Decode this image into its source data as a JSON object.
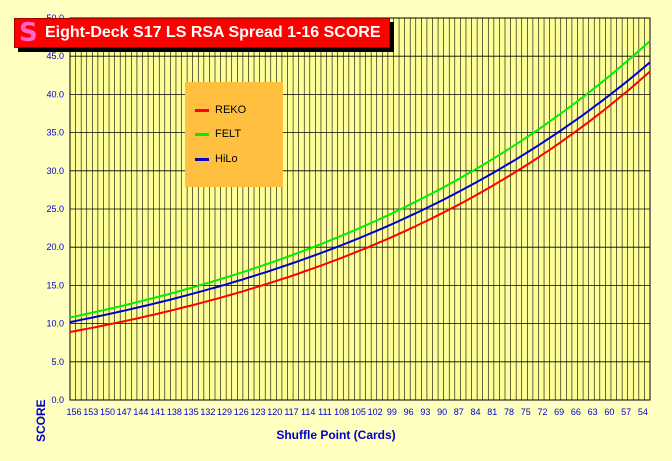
{
  "title": "Eight-Deck S17 LS RSA Spread 1-16 SCORE",
  "title_icon": "S",
  "chart_data": {
    "type": "line",
    "title": "Eight-Deck S17 LS RSA Spread 1-16 SCORE",
    "xlabel": "Shuffle Point (Cards)",
    "ylabel": "SCORE",
    "ylim": [
      0,
      50
    ],
    "yticks": [
      "0.0",
      "5.0",
      "10.0",
      "15.0",
      "20.0",
      "25.0",
      "30.0",
      "35.0",
      "40.0",
      "45.0",
      "50.0"
    ],
    "x": [
      156,
      155,
      154,
      153,
      152,
      151,
      150,
      149,
      148,
      147,
      146,
      145,
      144,
      143,
      142,
      141,
      140,
      139,
      138,
      137,
      136,
      135,
      134,
      133,
      132,
      131,
      130,
      129,
      128,
      127,
      126,
      125,
      124,
      123,
      122,
      121,
      120,
      119,
      118,
      117,
      116,
      115,
      114,
      113,
      112,
      111,
      110,
      109,
      108,
      107,
      106,
      105,
      104,
      103,
      102,
      101,
      100,
      99,
      98,
      97,
      96,
      95,
      94,
      93,
      92,
      91,
      90,
      89,
      88,
      87,
      86,
      85,
      84,
      83,
      82,
      81,
      80,
      79,
      78,
      77,
      76,
      75,
      74,
      73,
      72,
      71,
      70,
      69,
      68,
      67,
      66,
      65,
      64,
      63,
      62,
      61,
      60,
      59,
      58,
      57,
      56,
      55,
      54,
      53,
      52
    ],
    "xtick_labels": [
      "156",
      "153",
      "150",
      "147",
      "144",
      "141",
      "138",
      "135",
      "132",
      "129",
      "126",
      "123",
      "120",
      "117",
      "114",
      "111",
      "108",
      "105",
      "102",
      "99",
      "96",
      "93",
      "90",
      "87",
      "84",
      "81",
      "78",
      "75",
      "72",
      "69",
      "66",
      "63",
      "60",
      "57",
      "54"
    ],
    "legend_position": "upper-left",
    "grid": true,
    "series": [
      {
        "name": "REKO",
        "color": "#ff0000",
        "start": 8.9,
        "end": 43.0
      },
      {
        "name": "FELT",
        "color": "#00ee00",
        "start": 10.8,
        "end": 47.0
      },
      {
        "name": "HiLo",
        "color": "#0000cc",
        "start": 10.2,
        "end": 44.2
      }
    ]
  },
  "colors": {
    "background": "#ffffc0",
    "plot_area": "#ffff99",
    "grid": "#000000",
    "title_bg": "#ff0000",
    "legend_bg": "#ffc040",
    "axis_text": "#0000cc"
  }
}
